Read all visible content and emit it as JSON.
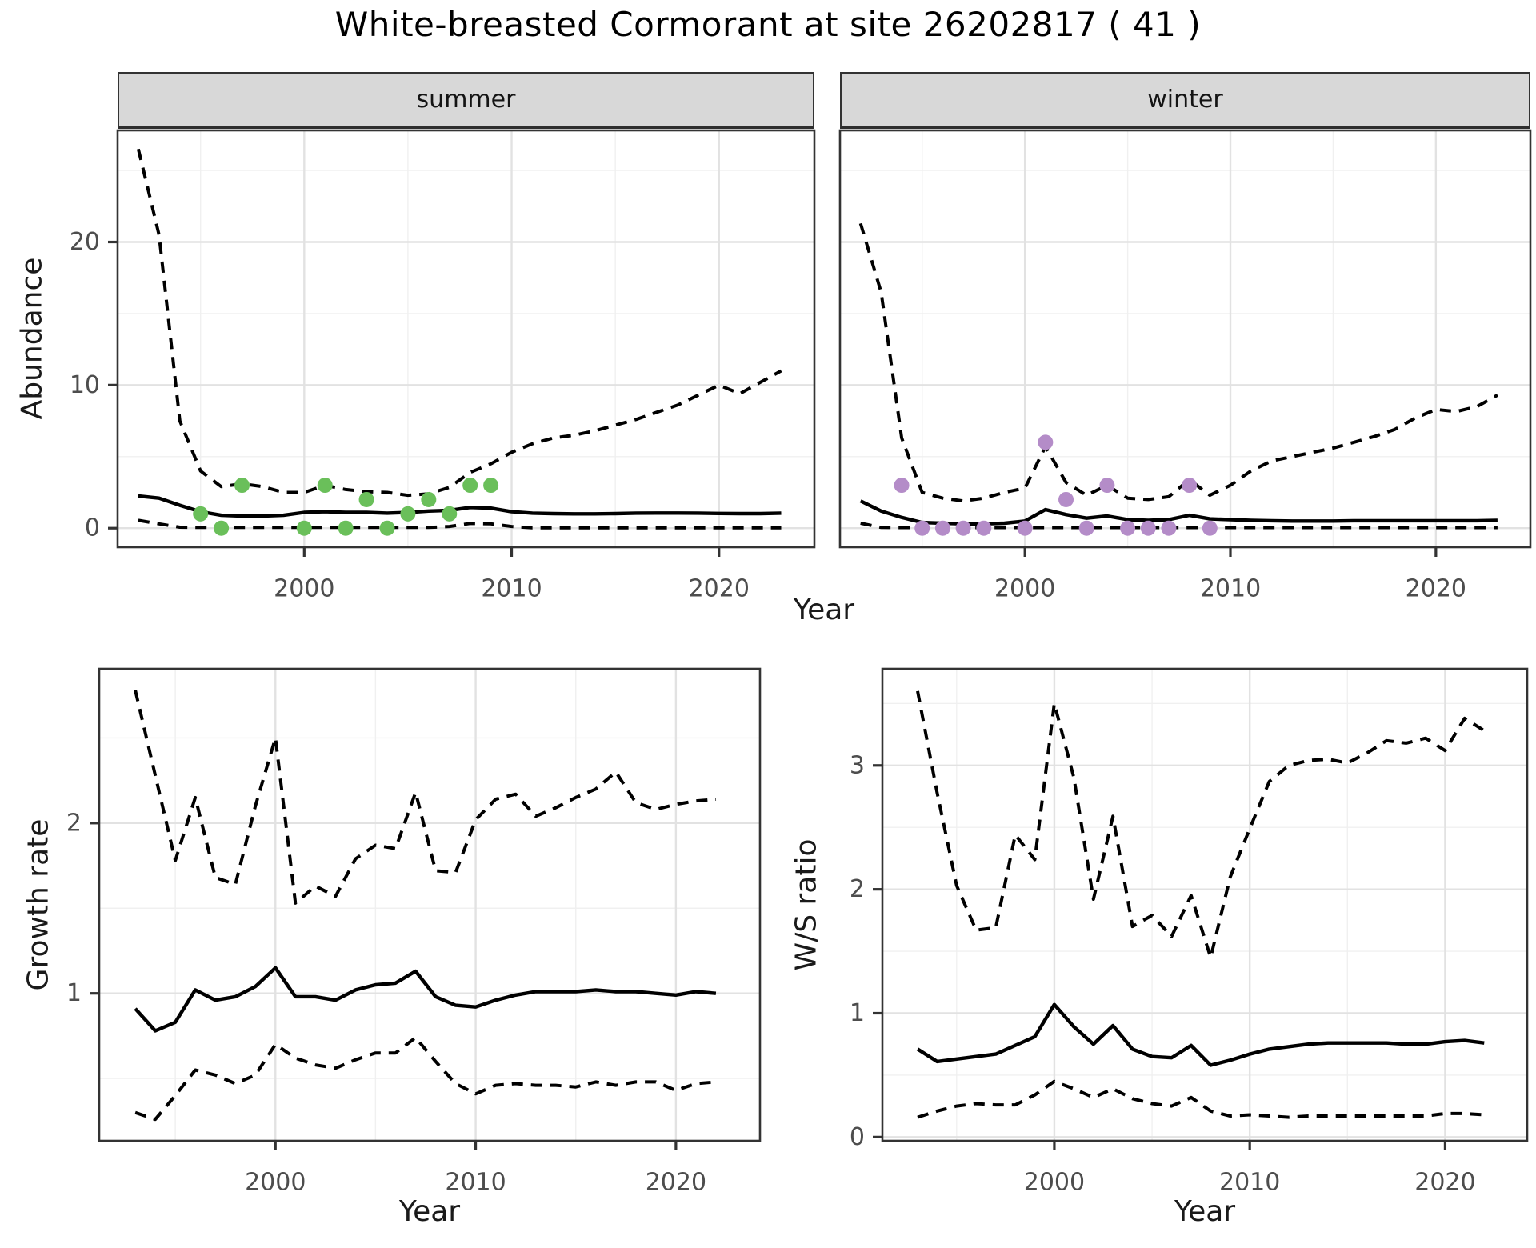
{
  "title": "White-breasted Cormorant at site 26202817 ( 41 )",
  "colors": {
    "summer_point": "#6abf5a",
    "winter_point": "#b48cc8",
    "line": "#000000",
    "grid_major": "#e2e2e2",
    "grid_minor": "#f0f0f0",
    "panel_border": "#333333",
    "strip_bg": "#d8d8d8",
    "tick_label": "#4d4d4d",
    "tick_mark": "#333333"
  },
  "top_row": {
    "ylabel": "Abundance",
    "xlabel": "Year",
    "facets": [
      {
        "label": "summer"
      },
      {
        "label": "winter"
      }
    ]
  },
  "bottom_row": {
    "left": {
      "ylabel": "Growth rate",
      "xlabel": "Year"
    },
    "right": {
      "ylabel": "W/S ratio",
      "xlabel": "Year"
    }
  },
  "chart_data": [
    {
      "id": "abundance-summer",
      "type": "line",
      "facet": "summer",
      "ylabel": "Abundance",
      "xlabel": "Year",
      "x_range": [
        1991,
        2024.6
      ],
      "y_range": [
        -1.33,
        27.8
      ],
      "x_ticks": [
        2000,
        2010,
        2020
      ],
      "x_minor": [
        1995,
        2005,
        2015
      ],
      "y_ticks": [
        0,
        10,
        20
      ],
      "y_minor": [
        5,
        15,
        25
      ],
      "show_y_labels": true,
      "years": [
        1992,
        1993,
        1994,
        1995,
        1996,
        1997,
        1998,
        1999,
        2000,
        2001,
        2002,
        2003,
        2004,
        2005,
        2006,
        2007,
        2008,
        2009,
        2010,
        2011,
        2012,
        2013,
        2014,
        2015,
        2016,
        2017,
        2018,
        2019,
        2020,
        2021,
        2022,
        2023
      ],
      "series": [
        {
          "name": "ci_upper",
          "style": "dashed",
          "values": [
            26.5,
            20.5,
            7.5,
            4.0,
            2.9,
            3.1,
            2.9,
            2.5,
            2.5,
            3.0,
            2.7,
            2.55,
            2.5,
            2.3,
            2.4,
            2.85,
            3.9,
            4.5,
            5.3,
            5.9,
            6.3,
            6.5,
            6.8,
            7.2,
            7.6,
            8.1,
            8.6,
            9.3,
            10.0,
            9.4,
            10.2,
            11.0
          ]
        },
        {
          "name": "median",
          "style": "solid",
          "values": [
            2.25,
            2.1,
            1.6,
            1.15,
            0.9,
            0.85,
            0.85,
            0.9,
            1.1,
            1.15,
            1.1,
            1.1,
            1.05,
            1.1,
            1.2,
            1.25,
            1.45,
            1.4,
            1.15,
            1.05,
            1.02,
            1.0,
            1.0,
            1.02,
            1.05,
            1.06,
            1.06,
            1.05,
            1.03,
            1.02,
            1.02,
            1.05
          ]
        },
        {
          "name": "ci_lower",
          "style": "dashed",
          "values": [
            0.55,
            0.3,
            0.07,
            0.05,
            0.05,
            0.05,
            0.05,
            0.05,
            0.05,
            0.05,
            0.05,
            0.05,
            0.05,
            0.05,
            0.05,
            0.12,
            0.33,
            0.3,
            0.12,
            0.03,
            0.03,
            0.03,
            0.03,
            0.03,
            0.03,
            0.03,
            0.03,
            0.03,
            0.03,
            0.03,
            0.03,
            0.03
          ]
        }
      ],
      "observations": {
        "color_key": "summer_point",
        "years": [
          1995,
          1996,
          1997,
          2000,
          2001,
          2002,
          2003,
          2004,
          2005,
          2006,
          2007,
          2008,
          2009
        ],
        "values": [
          1,
          0,
          3,
          0,
          3,
          0,
          2,
          0,
          1,
          2,
          1,
          3,
          3
        ]
      }
    },
    {
      "id": "abundance-winter",
      "type": "line",
      "facet": "winter",
      "ylabel": "Abundance",
      "xlabel": "Year",
      "x_range": [
        1991,
        2024.6
      ],
      "y_range": [
        -1.33,
        27.8
      ],
      "x_ticks": [
        2000,
        2010,
        2020
      ],
      "x_minor": [
        1995,
        2005,
        2015
      ],
      "y_ticks": [
        0,
        10,
        20
      ],
      "y_minor": [
        5,
        15,
        25
      ],
      "show_y_labels": false,
      "years": [
        1992,
        1993,
        1994,
        1995,
        1996,
        1997,
        1998,
        1999,
        2000,
        2001,
        2002,
        2003,
        2004,
        2005,
        2006,
        2007,
        2008,
        2009,
        2010,
        2011,
        2012,
        2013,
        2014,
        2015,
        2016,
        2017,
        2018,
        2019,
        2020,
        2021,
        2022,
        2023
      ],
      "series": [
        {
          "name": "ci_upper",
          "style": "dashed",
          "values": [
            21.3,
            16.5,
            6.3,
            2.5,
            2.1,
            1.9,
            2.1,
            2.5,
            2.8,
            5.7,
            3.2,
            2.3,
            3.0,
            2.1,
            2.0,
            2.2,
            3.4,
            2.3,
            3.0,
            4.0,
            4.7,
            5.0,
            5.3,
            5.6,
            6.0,
            6.4,
            6.9,
            7.7,
            8.3,
            8.15,
            8.5,
            9.3
          ]
        },
        {
          "name": "median",
          "style": "solid",
          "values": [
            1.9,
            1.2,
            0.75,
            0.4,
            0.35,
            0.3,
            0.3,
            0.35,
            0.5,
            1.3,
            0.95,
            0.7,
            0.85,
            0.6,
            0.55,
            0.6,
            0.9,
            0.65,
            0.6,
            0.55,
            0.52,
            0.5,
            0.5,
            0.5,
            0.52,
            0.52,
            0.52,
            0.52,
            0.52,
            0.52,
            0.52,
            0.55
          ]
        },
        {
          "name": "ci_lower",
          "style": "dashed",
          "values": [
            0.35,
            0.05,
            0.04,
            0.04,
            0.04,
            0.04,
            0.04,
            0.04,
            0.04,
            0.04,
            0.04,
            0.04,
            0.04,
            0.04,
            0.04,
            0.04,
            0.04,
            0.04,
            0.04,
            0.04,
            0.04,
            0.04,
            0.04,
            0.04,
            0.04,
            0.04,
            0.04,
            0.04,
            0.04,
            0.04,
            0.04,
            0.04
          ]
        }
      ],
      "observations": {
        "color_key": "winter_point",
        "years": [
          1994,
          1995,
          1996,
          1997,
          1998,
          2000,
          2001,
          2002,
          2003,
          2004,
          2005,
          2006,
          2007,
          2008,
          2009
        ],
        "values": [
          3,
          0,
          0,
          0,
          0,
          0,
          6,
          2,
          0,
          3,
          0,
          0,
          0,
          3,
          0
        ]
      }
    },
    {
      "id": "growth-rate",
      "type": "line",
      "ylabel": "Growth rate",
      "xlabel": "Year",
      "x_range": [
        1991.2,
        2024.2
      ],
      "y_range": [
        0.134,
        2.906
      ],
      "x_ticks": [
        2000,
        2010,
        2020
      ],
      "x_minor": [
        1995,
        2005,
        2015
      ],
      "y_ticks": [
        1,
        2
      ],
      "y_minor": [
        0.5,
        1.5,
        2.5
      ],
      "show_y_labels": true,
      "years": [
        1993,
        1994,
        1995,
        1996,
        1997,
        1998,
        1999,
        2000,
        2001,
        2002,
        2003,
        2004,
        2005,
        2006,
        2007,
        2008,
        2009,
        2010,
        2011,
        2012,
        2013,
        2014,
        2015,
        2016,
        2017,
        2018,
        2019,
        2020,
        2021,
        2022
      ],
      "series": [
        {
          "name": "ci_upper",
          "style": "dashed",
          "values": [
            2.78,
            2.28,
            1.78,
            2.15,
            1.68,
            1.64,
            2.1,
            2.5,
            1.53,
            1.63,
            1.57,
            1.79,
            1.87,
            1.85,
            2.18,
            1.72,
            1.71,
            2.02,
            2.14,
            2.17,
            2.04,
            2.09,
            2.15,
            2.2,
            2.3,
            2.12,
            2.08,
            2.11,
            2.13,
            2.14
          ]
        },
        {
          "name": "median",
          "style": "solid",
          "values": [
            0.91,
            0.78,
            0.83,
            1.02,
            0.96,
            0.98,
            1.04,
            1.15,
            0.98,
            0.98,
            0.96,
            1.02,
            1.05,
            1.06,
            1.13,
            0.98,
            0.93,
            0.92,
            0.96,
            0.99,
            1.01,
            1.01,
            1.01,
            1.02,
            1.01,
            1.01,
            1.0,
            0.99,
            1.01,
            1.0
          ]
        },
        {
          "name": "ci_lower",
          "style": "dashed",
          "values": [
            0.3,
            0.26,
            0.4,
            0.55,
            0.52,
            0.47,
            0.52,
            0.7,
            0.62,
            0.58,
            0.56,
            0.61,
            0.65,
            0.65,
            0.74,
            0.6,
            0.47,
            0.41,
            0.46,
            0.47,
            0.46,
            0.46,
            0.45,
            0.48,
            0.46,
            0.48,
            0.48,
            0.43,
            0.47,
            0.48
          ]
        }
      ]
    },
    {
      "id": "ws-ratio",
      "type": "line",
      "ylabel": "W/S ratio",
      "xlabel": "Year",
      "x_range": [
        1991.2,
        2024.2
      ],
      "y_range": [
        -0.03,
        3.78
      ],
      "x_ticks": [
        2000,
        2010,
        2020
      ],
      "x_minor": [
        1995,
        2005,
        2015
      ],
      "y_ticks": [
        0,
        1,
        2,
        3
      ],
      "y_minor": [
        0.5,
        1.5,
        2.5,
        3.5
      ],
      "show_y_labels": true,
      "years": [
        1993,
        1994,
        1995,
        1996,
        1997,
        1998,
        1999,
        2000,
        2001,
        2002,
        2003,
        2004,
        2005,
        2006,
        2007,
        2008,
        2009,
        2010,
        2011,
        2012,
        2013,
        2014,
        2015,
        2016,
        2017,
        2018,
        2019,
        2020,
        2021,
        2022
      ],
      "series": [
        {
          "name": "ci_upper",
          "style": "dashed",
          "values": [
            3.6,
            2.78,
            2.03,
            1.67,
            1.69,
            2.44,
            2.24,
            3.5,
            2.9,
            1.92,
            2.59,
            1.7,
            1.79,
            1.62,
            1.95,
            1.45,
            2.1,
            2.49,
            2.87,
            3.0,
            3.04,
            3.05,
            3.02,
            3.1,
            3.2,
            3.18,
            3.22,
            3.12,
            3.38,
            3.28
          ]
        },
        {
          "name": "median",
          "style": "solid",
          "values": [
            0.71,
            0.61,
            0.63,
            0.65,
            0.67,
            0.74,
            0.81,
            1.07,
            0.89,
            0.75,
            0.9,
            0.71,
            0.65,
            0.64,
            0.74,
            0.58,
            0.62,
            0.67,
            0.71,
            0.73,
            0.75,
            0.76,
            0.76,
            0.76,
            0.76,
            0.75,
            0.75,
            0.77,
            0.78,
            0.76
          ]
        },
        {
          "name": "ci_lower",
          "style": "dashed",
          "values": [
            0.16,
            0.21,
            0.25,
            0.27,
            0.26,
            0.26,
            0.34,
            0.45,
            0.39,
            0.32,
            0.39,
            0.31,
            0.27,
            0.25,
            0.32,
            0.21,
            0.17,
            0.18,
            0.17,
            0.16,
            0.17,
            0.17,
            0.17,
            0.17,
            0.17,
            0.17,
            0.17,
            0.19,
            0.19,
            0.18
          ]
        }
      ]
    }
  ]
}
